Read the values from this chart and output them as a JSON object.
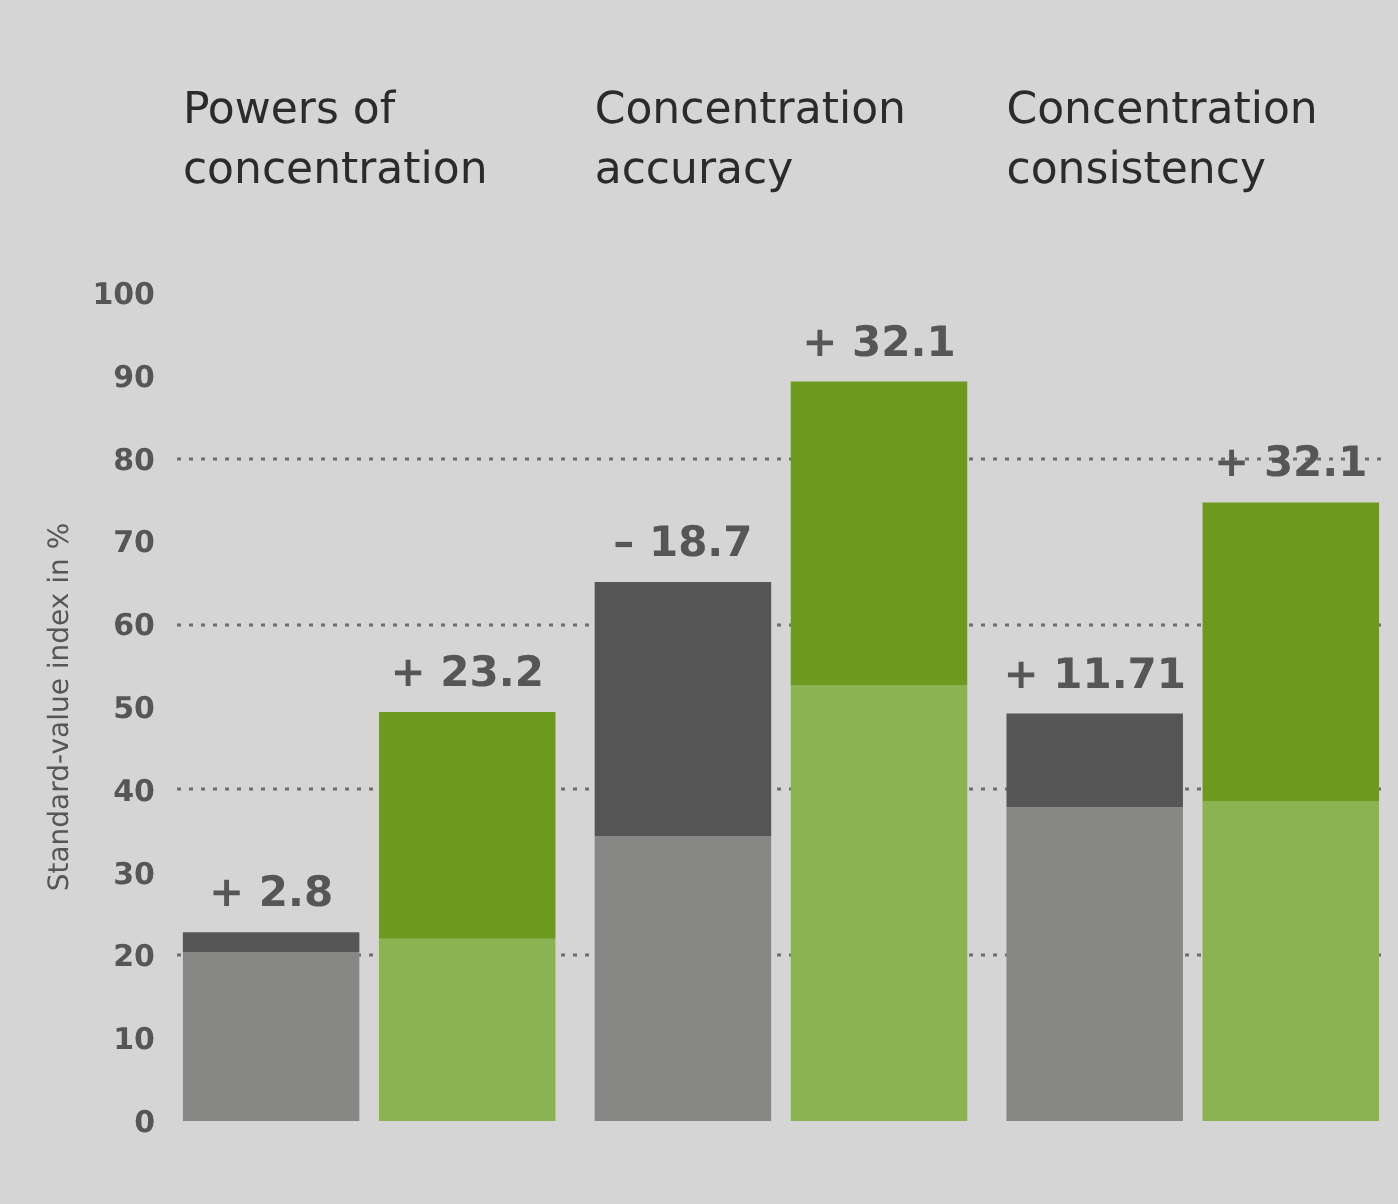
{
  "chart_data": {
    "type": "bar",
    "categories": [
      null,
      null,
      null,
      null,
      null,
      null
    ],
    "series": [
      {
        "colors": [
          "#878786",
          "#8ab351",
          "#878786",
          "#8ab351",
          "#878786",
          "#8ab351"
        ],
        "values": [
          20.4,
          22.0,
          34.4,
          52.6,
          37.9,
          38.6
        ]
      },
      {
        "colors": [
          "#565656",
          "#6c9a1e",
          "#565656",
          "#6c9a1e",
          "#565656",
          "#6c9a1e"
        ],
        "values": [
          2.4,
          27.4,
          30.7,
          36.7,
          11.3,
          36.1
        ]
      }
    ],
    "annotations": [
      "Powers of\nconcentration",
      "Concentration\naccuracy",
      "Concentration\nconsistency",
      "+ 2.8",
      "+ 23.2",
      "– 18.7",
      "+ 32.1",
      "+ 11.71",
      "+ 32.1"
    ],
    "ylabel": "Standard-value index in %",
    "ylim": [
      0,
      100
    ],
    "yticks": [
      0,
      10,
      20,
      30,
      40,
      50,
      60,
      70,
      80,
      90,
      100
    ],
    "grid": "y",
    "stacked": true
  }
}
